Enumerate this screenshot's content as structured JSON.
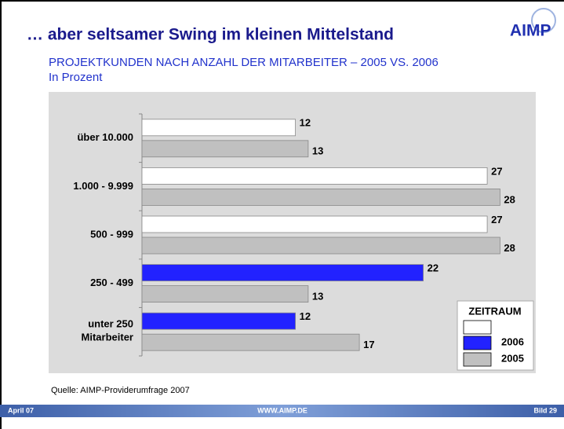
{
  "title": "… aber seltsamer Swing im kleinen Mittelstand",
  "logo": "AIMP",
  "source": "Quelle: AIMP-Providerumfrage 2007",
  "footer": {
    "left": "April 07",
    "center": "WWW.AIMP.DE",
    "right": "Bild 29"
  },
  "chart_data": {
    "type": "hbar",
    "title": "PROJEKTKUNDEN NACH ANZAHL DER MITARBEITER – 2005 VS. 2006",
    "subtitle": "In Prozent",
    "categories": [
      "über 10.000",
      "1.000 - 9.999",
      "500 - 999",
      "250 - 499",
      "unter 250\nMitarbeiter"
    ],
    "series": [
      {
        "name": "2006",
        "colors": [
          "#ffffff",
          "#ffffff",
          "#ffffff",
          "#2222ff",
          "#2222ff"
        ],
        "color": "#2222ff",
        "values": [
          12,
          27,
          27,
          22,
          12
        ]
      },
      {
        "name": "2005",
        "color": "#c0c0c0",
        "values": [
          13,
          28,
          28,
          13,
          17
        ]
      }
    ],
    "xlim": [
      0,
      30
    ],
    "legend": {
      "title": "ZEITRAUM",
      "position": "lower right"
    }
  }
}
